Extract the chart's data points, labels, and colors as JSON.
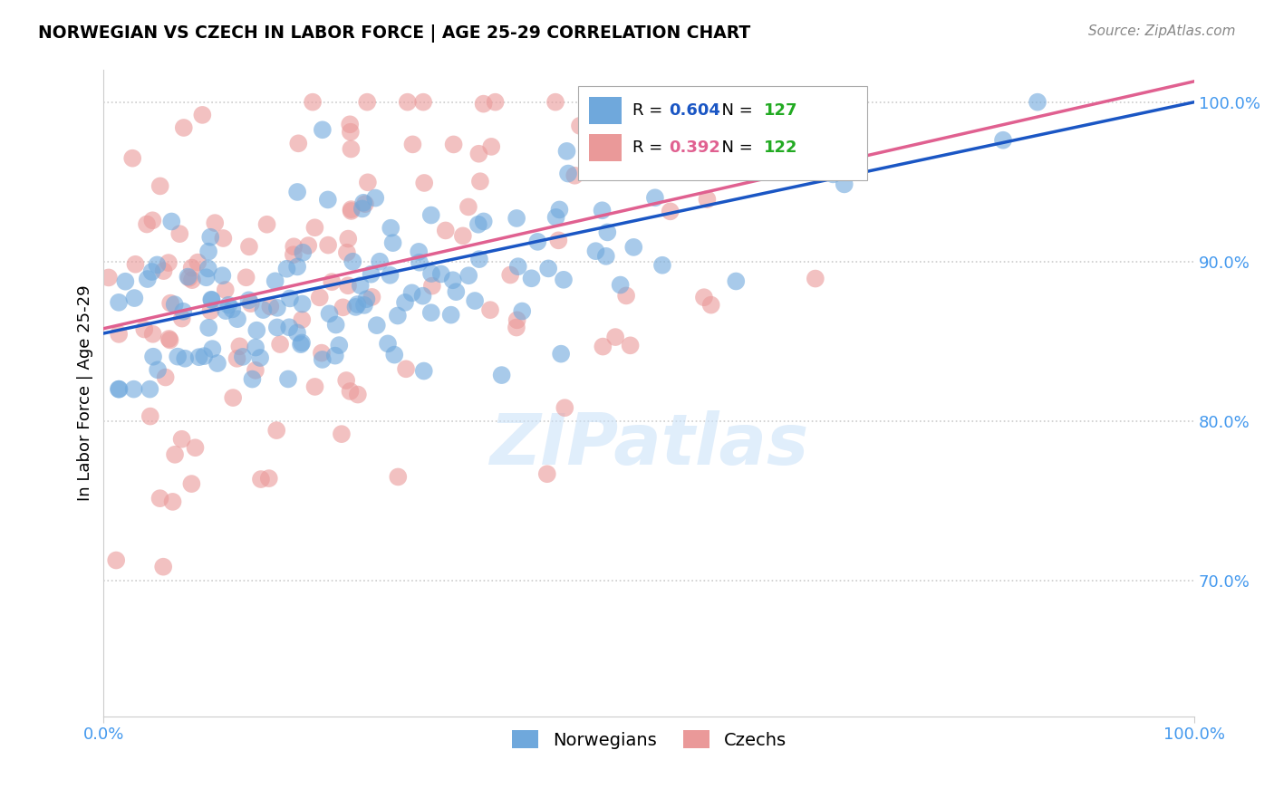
{
  "title": "NORWEGIAN VS CZECH IN LABOR FORCE | AGE 25-29 CORRELATION CHART",
  "source": "Source: ZipAtlas.com",
  "ylabel": "In Labor Force | Age 25-29",
  "xmin": 0.0,
  "xmax": 1.0,
  "ymin": 0.615,
  "ymax": 1.02,
  "norwegian_R": 0.604,
  "norwegian_N": 127,
  "czech_R": 0.392,
  "czech_N": 122,
  "norwegian_color": "#6fa8dc",
  "czech_color": "#ea9999",
  "norwegian_line_color": "#1a56c4",
  "czech_line_color": "#e06090",
  "ytick_labels": [
    "70.0%",
    "80.0%",
    "90.0%",
    "100.0%"
  ],
  "ytick_values": [
    0.7,
    0.8,
    0.9,
    1.0
  ],
  "xtick_labels": [
    "0.0%",
    "100.0%"
  ],
  "legend_norwegian": "Norwegians",
  "legend_czech": "Czechs",
  "nor_line_x0": 0.0,
  "nor_line_y0": 0.855,
  "nor_line_x1": 1.0,
  "nor_line_y1": 1.0,
  "cze_line_x0": 0.0,
  "cze_line_y0": 0.862,
  "cze_line_x1": 1.0,
  "cze_line_y1": 1.0
}
